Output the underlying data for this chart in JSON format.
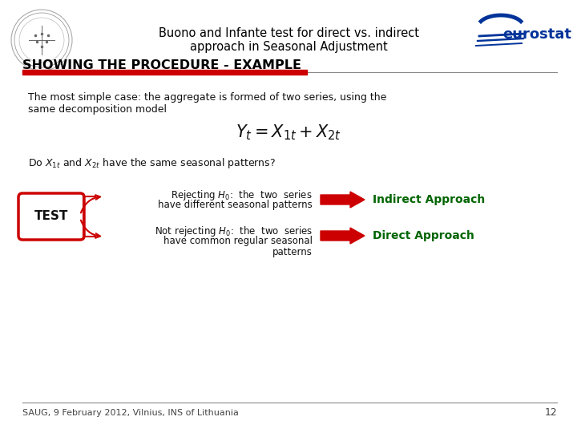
{
  "bg_color": "#ffffff",
  "title_line1": "Buono and Infante test for direct vs. indirect",
  "title_line2": "approach in Seasonal Adjustment",
  "section_title": "SHOWING THE PROCEDURE - EXAMPLE",
  "body_text1": "The most simple case: the aggregate is formed of two series, using the",
  "body_text2": "same decomposition model",
  "formula": "$Y_t = X_{1t} + X_{2t}$",
  "question_pre": "Do ",
  "question_post": " and ",
  "question_end": " have the same seasonal patterns?",
  "reject_line1": "Rejecting ",
  "reject_line2": ": the two series",
  "reject_line3": "have different seasonal patterns",
  "not_reject_line1": "Not rejecting ",
  "not_reject_line2": ": the two series",
  "not_reject_line3": "have common regular seasonal",
  "not_reject_line4": "patterns",
  "indirect_label": "Indirect Approach",
  "direct_label": "Direct Approach",
  "test_label": "TEST",
  "footer_text": "SAUG, 9 February 2012, Vilnius, INS of Lithuania",
  "page_number": "12",
  "red_color": "#cc0000",
  "dark_green": "#006400",
  "title_color": "#000000",
  "section_title_color": "#000000",
  "red_bar_color": "#cc0000",
  "gray_line_color": "#888888",
  "blue_color": "#003399"
}
